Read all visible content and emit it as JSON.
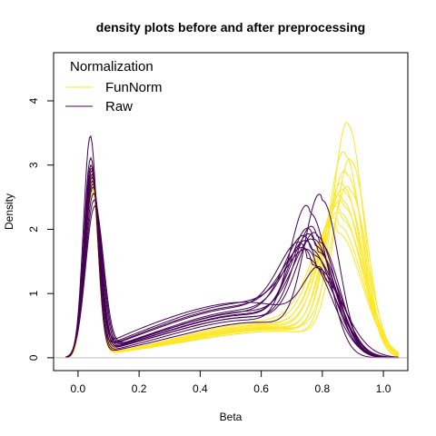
{
  "chart_data": {
    "type": "line",
    "title": "density plots before and after preprocessing",
    "xlabel": "Beta",
    "ylabel": "Density",
    "xlim": [
      -0.08,
      1.08
    ],
    "ylim": [
      -0.2,
      4.75
    ],
    "xticks": [
      0.0,
      0.2,
      0.4,
      0.6,
      0.8,
      1.0
    ],
    "xtick_labels": [
      "0.0",
      "0.2",
      "0.4",
      "0.6",
      "0.8",
      "1.0"
    ],
    "yticks": [
      0,
      1,
      2,
      3,
      4
    ],
    "ytick_labels": [
      "0",
      "1",
      "2",
      "3",
      "4"
    ],
    "baseline_y": 0,
    "grid": false,
    "legend": {
      "title": "Normalization",
      "placement": "top-left",
      "entries": [
        {
          "label": "FunNorm",
          "color": "#FDE725"
        },
        {
          "label": "Raw",
          "color": "#440154"
        }
      ]
    },
    "series": [
      {
        "name": "FunNorm",
        "color": "#FDE725",
        "curves": [
          {
            "p1": 2.9,
            "m1": 0.043,
            "s1": 0.022,
            "p2": 3.62,
            "m2": 0.885,
            "s2": 0.05,
            "fl": 0.3,
            "fr": 1.42
          },
          {
            "p1": 2.8,
            "m1": 0.045,
            "s1": 0.023,
            "p2": 3.15,
            "m2": 0.875,
            "s2": 0.055,
            "fl": 0.32,
            "fr": 1.5
          },
          {
            "p1": 2.7,
            "m1": 0.046,
            "s1": 0.024,
            "p2": 3.05,
            "m2": 0.895,
            "s2": 0.052,
            "fl": 0.33,
            "fr": 1.4
          },
          {
            "p1": 2.85,
            "m1": 0.042,
            "s1": 0.022,
            "p2": 2.85,
            "m2": 0.88,
            "s2": 0.058,
            "fl": 0.31,
            "fr": 1.55
          },
          {
            "p1": 2.6,
            "m1": 0.047,
            "s1": 0.025,
            "p2": 2.65,
            "m2": 0.87,
            "s2": 0.06,
            "fl": 0.34,
            "fr": 1.6
          },
          {
            "p1": 2.75,
            "m1": 0.044,
            "s1": 0.023,
            "p2": 2.55,
            "m2": 0.875,
            "s2": 0.062,
            "fl": 0.33,
            "fr": 1.65
          },
          {
            "p1": 2.95,
            "m1": 0.043,
            "s1": 0.022,
            "p2": 2.45,
            "m2": 0.865,
            "s2": 0.065,
            "fl": 0.32,
            "fr": 1.7
          },
          {
            "p1": 2.65,
            "m1": 0.046,
            "s1": 0.024,
            "p2": 2.35,
            "m2": 0.87,
            "s2": 0.068,
            "fl": 0.35,
            "fr": 1.75
          },
          {
            "p1": 2.55,
            "m1": 0.048,
            "s1": 0.025,
            "p2": 2.25,
            "m2": 0.86,
            "s2": 0.07,
            "fl": 0.36,
            "fr": 1.8
          },
          {
            "p1": 2.8,
            "m1": 0.045,
            "s1": 0.023,
            "p2": 2.15,
            "m2": 0.865,
            "s2": 0.072,
            "fl": 0.34,
            "fr": 1.85
          },
          {
            "p1": 2.7,
            "m1": 0.044,
            "s1": 0.024,
            "p2": 2.05,
            "m2": 0.855,
            "s2": 0.075,
            "fl": 0.36,
            "fr": 1.9
          },
          {
            "p1": 2.6,
            "m1": 0.046,
            "s1": 0.025,
            "p2": 1.95,
            "m2": 0.85,
            "s2": 0.078,
            "fl": 0.37,
            "fr": 2.0
          },
          {
            "p1": 2.9,
            "m1": 0.043,
            "s1": 0.022,
            "p2": 2.6,
            "m2": 0.89,
            "s2": 0.058,
            "fl": 0.3,
            "fr": 1.62
          }
        ]
      },
      {
        "name": "Raw",
        "color": "#440154",
        "curves": [
          {
            "p1": 3.45,
            "m1": 0.04,
            "s1": 0.022,
            "p2": 2.45,
            "m2": 0.8,
            "s2": 0.055,
            "fl": 0.4,
            "fr": 1.9
          },
          {
            "p1": 3.0,
            "m1": 0.042,
            "s1": 0.023,
            "p2": 2.25,
            "m2": 0.76,
            "s2": 0.06,
            "fl": 0.45,
            "fr": 2.0
          },
          {
            "p1": 2.95,
            "m1": 0.043,
            "s1": 0.024,
            "p2": 1.9,
            "m2": 0.78,
            "s2": 0.065,
            "fl": 0.55,
            "fr": 2.1
          },
          {
            "p1": 2.85,
            "m1": 0.045,
            "s1": 0.025,
            "p2": 1.85,
            "m2": 0.77,
            "s2": 0.068,
            "fl": 0.6,
            "fr": 2.2
          },
          {
            "p1": 2.75,
            "m1": 0.046,
            "s1": 0.025,
            "p2": 1.8,
            "m2": 0.79,
            "s2": 0.066,
            "fl": 0.58,
            "fr": 2.1
          },
          {
            "p1": 2.65,
            "m1": 0.048,
            "s1": 0.026,
            "p2": 1.75,
            "m2": 0.775,
            "s2": 0.07,
            "fl": 0.62,
            "fr": 2.25
          },
          {
            "p1": 2.55,
            "m1": 0.05,
            "s1": 0.027,
            "p2": 1.7,
            "m2": 0.76,
            "s2": 0.075,
            "fl": 0.66,
            "fr": 2.3
          },
          {
            "p1": 2.45,
            "m1": 0.052,
            "s1": 0.028,
            "p2": 1.65,
            "m2": 0.785,
            "s2": 0.072,
            "fl": 0.7,
            "fr": 2.35
          },
          {
            "p1": 2.35,
            "m1": 0.054,
            "s1": 0.029,
            "p2": 1.6,
            "m2": 0.77,
            "s2": 0.078,
            "fl": 0.72,
            "fr": 2.4
          },
          {
            "p1": 2.9,
            "m1": 0.044,
            "s1": 0.024,
            "p2": 1.2,
            "m2": 0.81,
            "s2": 0.06,
            "fl": 1.1,
            "fr": 2.6
          },
          {
            "p1": 2.8,
            "m1": 0.045,
            "s1": 0.024,
            "p2": 1.55,
            "m2": 0.75,
            "s2": 0.08,
            "fl": 0.78,
            "fr": 2.5
          },
          {
            "p1": 2.7,
            "m1": 0.047,
            "s1": 0.025,
            "p2": 1.45,
            "m2": 0.765,
            "s2": 0.082,
            "fl": 0.85,
            "fr": 2.55
          },
          {
            "p1": 3.1,
            "m1": 0.041,
            "s1": 0.022,
            "p2": 1.4,
            "m2": 0.78,
            "s2": 0.085,
            "fl": 0.9,
            "fr": 2.7
          }
        ]
      }
    ]
  }
}
